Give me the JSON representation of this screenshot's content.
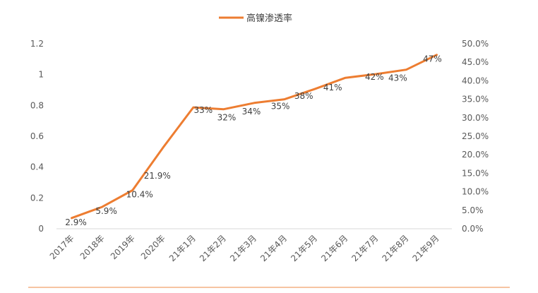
{
  "chart_data": {
    "type": "line",
    "series": [
      {
        "name": "高镍渗透率",
        "color": "#ED7D31",
        "values": [
          2.9,
          5.9,
          10.4,
          21.9,
          32.8,
          32.3,
          34.0,
          35.0,
          37.8,
          40.8,
          41.8,
          43.0,
          47.0
        ],
        "labels": [
          "2.9%",
          "5.9%",
          "10.4%",
          "21.9%",
          "33%",
          "32%",
          "34%",
          "35%",
          "38%",
          "41%",
          "42%",
          "43%",
          "47%"
        ]
      }
    ],
    "categories": [
      "2017年",
      "2018年",
      "2019年",
      "2020年",
      "21年1月",
      "21年2月",
      "21年3月",
      "21年4月",
      "21年5月",
      "21年6月",
      "21年7月",
      "21年8月",
      "21年9月"
    ],
    "left_axis": {
      "ylim": [
        0,
        1.2
      ],
      "ticks": [
        "0",
        "0.2",
        "0.4",
        "0.6",
        "0.8",
        "1",
        "1.2"
      ]
    },
    "right_axis": {
      "ylim": [
        0,
        50
      ],
      "ticks": [
        "0.0%",
        "5.0%",
        "10.0%",
        "15.0%",
        "20.0%",
        "25.0%",
        "30.0%",
        "35.0%",
        "40.0%",
        "45.0%",
        "50.0%"
      ]
    },
    "grid": false,
    "legend": "top-center"
  },
  "colors": {
    "line": "#ED7D31",
    "axis": "#d9d9d9",
    "bottom_rule": "#F4B183"
  }
}
